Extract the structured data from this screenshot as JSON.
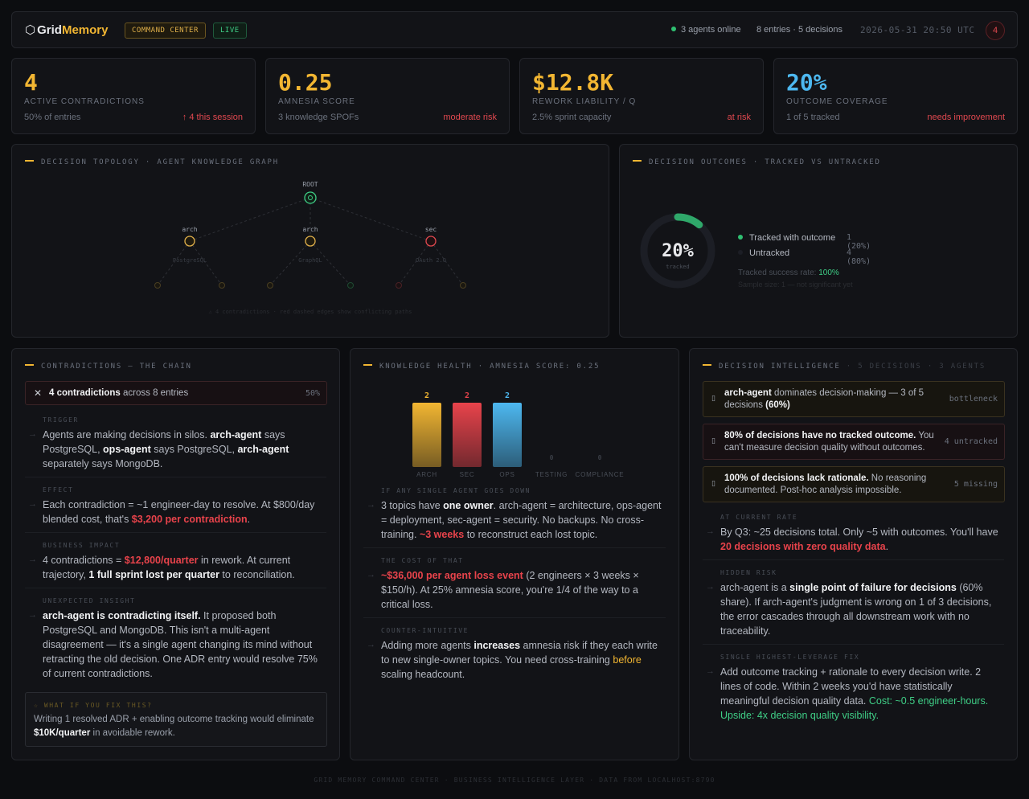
{
  "header": {
    "logo_hex": "⬡",
    "logo_part1": "Grid",
    "logo_part2": "Memory",
    "tag_command": "COMMAND CENTER",
    "tag_live": "LIVE",
    "agents_online": "3 agents online",
    "entries_decisions": "8 entries · 5 decisions",
    "timestamp": "2026-05-31 20:50 UTC",
    "alert_count": "4"
  },
  "kpis": [
    {
      "value": "4",
      "label": "ACTIVE CONTRADICTIONS",
      "sub": "50% of entries",
      "risk": "↑ 4 this session",
      "color": "#f2b632"
    },
    {
      "value": "0.25",
      "label": "AMNESIA SCORE",
      "sub": "3 knowledge SPOFs",
      "risk": "moderate risk",
      "color": "#f2b632"
    },
    {
      "value": "$12.8K",
      "label": "REWORK LIABILITY / Q",
      "sub": "2.5% sprint capacity",
      "risk": "at risk",
      "color": "#f2b632"
    },
    {
      "value": "20%",
      "label": "OUTCOME COVERAGE",
      "sub": "1 of 5 tracked",
      "risk": "needs improvement",
      "color": "#4db8f0"
    }
  ],
  "topology": {
    "title": "DECISION TOPOLOGY · AGENT KNOWLEDGE GRAPH",
    "root_label": "ROOT",
    "nodes": [
      {
        "label": "arch",
        "sub": "PostgreSQL",
        "color": "#e0b04a"
      },
      {
        "label": "arch",
        "sub": "GraphQL",
        "color": "#e0b04a"
      },
      {
        "label": "sec",
        "sub": "OAuth 2.0",
        "color": "#e0484f"
      }
    ],
    "footnote": "⚠ 4 contradictions · red dashed edges show conflicting paths"
  },
  "outcomes": {
    "title": "DECISION OUTCOMES · TRACKED VS UNTRACKED",
    "donut_value": "20%",
    "donut_label": "tracked",
    "tracked_fraction": 0.2,
    "tracked_label": "Tracked with outcome",
    "tracked_count": "1 (20%)",
    "untracked_label": "Untracked",
    "untracked_count": "4 (80%)",
    "success_label": "Tracked success rate:",
    "success_value": "100%",
    "sample_note": "Sample size: 1 — not significant yet"
  },
  "contradictions": {
    "title": "CONTRADICTIONS — THE CHAIN",
    "summary_bold": "4 contradictions",
    "summary_rest": " across 8 entries",
    "summary_pct": "50%",
    "trigger_h": "TRIGGER",
    "effect_h": "EFFECT",
    "impact_h": "BUSINESS IMPACT",
    "insight_h": "UNEXPECTED INSIGHT",
    "fix_h": "☆ WHAT IF YOU FIX THIS?",
    "fix_b1": "Writing 1 resolved ADR + enabling outcome tracking would eliminate ",
    "fix_b2": "$10K/quarter",
    "fix_b3": " in avoidable rework."
  },
  "health": {
    "title": "KNOWLEDGE HEALTH · AMNESIA SCORE: 0.25",
    "bars": [
      {
        "label": "ARCH",
        "value": 2,
        "color": "#f2b632"
      },
      {
        "label": "SEC",
        "value": 2,
        "color": "#e8434b"
      },
      {
        "label": "OPS",
        "value": 2,
        "color": "#4db8f0"
      },
      {
        "label": "TESTING",
        "value": 0,
        "color": "#3a3e46"
      },
      {
        "label": "COMPLIANCE",
        "value": 0,
        "color": "#3a3e46"
      }
    ],
    "down_h": "IF ANY SINGLE AGENT GOES DOWN",
    "cost_h": "THE COST OF THAT",
    "counter_h": "COUNTER-INTUITIVE"
  },
  "intel": {
    "title": "DECISION INTELLIGENCE",
    "title_dim": " · 5 DECISIONS · 3 AGENTS",
    "alert1_r": "bottleneck",
    "alert2_r": "4 untracked",
    "alert3_r": "5 missing",
    "rate_h": "AT CURRENT RATE",
    "risk_h": "HIDDEN RISK",
    "fix_h": "SINGLE HIGHEST-LEVERAGE FIX"
  },
  "footer": "GRID MEMORY COMMAND CENTER · BUSINESS INTELLIGENCE LAYER · DATA FROM LOCALHOST:8790"
}
